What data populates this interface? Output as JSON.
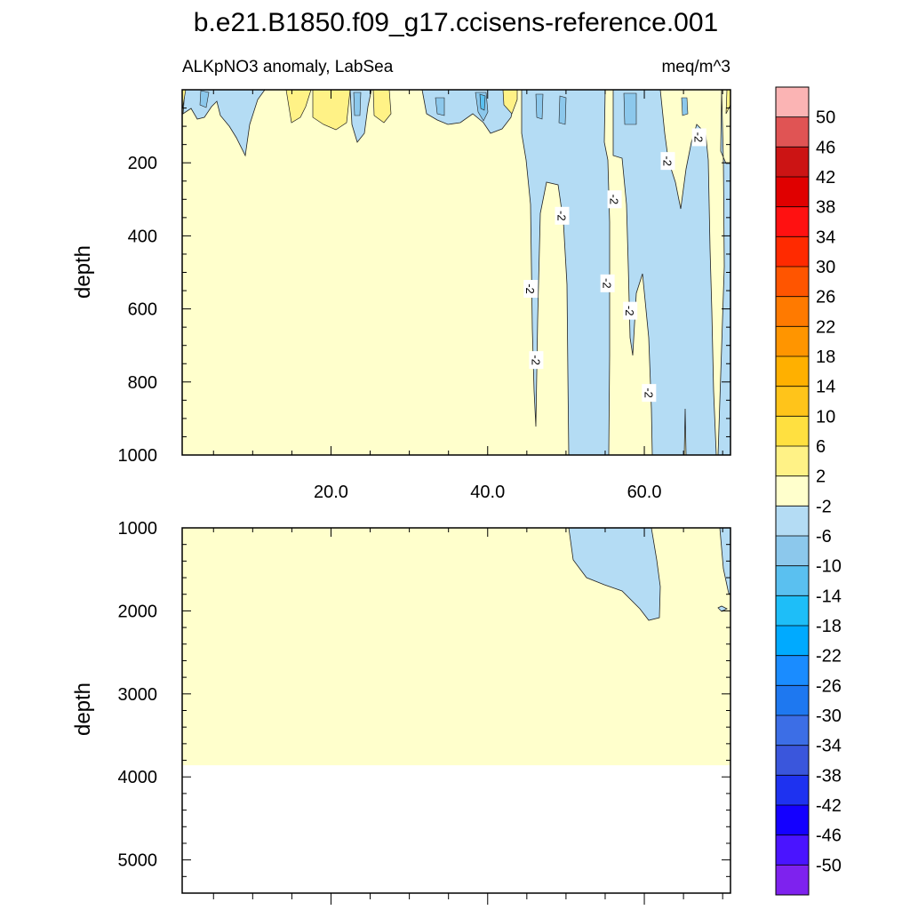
{
  "chart_data": {
    "type": "contour",
    "title": "b.e21.B1850.f09_g17.ccisens-reference.001",
    "subtitle_left": "ALKpNO3 anomaly, LabSea",
    "subtitle_right": "meq/m^3",
    "ylabel": "depth",
    "xlim": [
      1,
      71
    ],
    "upper_panel": {
      "ylim": [
        0,
        1000
      ],
      "yticks": [
        200,
        400,
        600,
        800,
        1000
      ],
      "ytick_labels": [
        "200",
        "400",
        "600",
        "800",
        "1000"
      ],
      "xticks": [
        20,
        40,
        60
      ],
      "xtick_labels": [
        "20.0",
        "40.0",
        "60.0"
      ],
      "contour_labels": [
        "-2",
        "-2",
        "-2",
        "-2",
        "-2",
        "-2",
        "-2",
        "-2",
        "-2"
      ],
      "contour_label_positions": [
        {
          "x": 45.5,
          "y": 545
        },
        {
          "x": 46.2,
          "y": 740
        },
        {
          "x": 49.5,
          "y": 345
        },
        {
          "x": 56.2,
          "y": 300
        },
        {
          "x": 55.3,
          "y": 530
        },
        {
          "x": 58.2,
          "y": 605
        },
        {
          "x": 60.6,
          "y": 830
        },
        {
          "x": 63.0,
          "y": 195
        },
        {
          "x": 67.0,
          "y": 130
        }
      ]
    },
    "lower_panel": {
      "ylim": [
        1000,
        5400
      ],
      "yticks": [
        1000,
        2000,
        3000,
        4000,
        5000
      ],
      "ytick_labels": [
        "1000",
        "2000",
        "3000",
        "4000",
        "5000"
      ],
      "ocean_floor_depth": 3860
    },
    "colorbar": {
      "levels": [
        "50",
        "46",
        "42",
        "38",
        "34",
        "30",
        "26",
        "22",
        "18",
        "14",
        "10",
        "6",
        "2",
        "-2",
        "-6",
        "-10",
        "-14",
        "-18",
        "-22",
        "-26",
        "-30",
        "-34",
        "-38",
        "-42",
        "-46",
        "-50"
      ],
      "colors": [
        "#fbb4b4",
        "#e05454",
        "#cc1414",
        "#e00000",
        "#ff1111",
        "#ff2a00",
        "#ff5500",
        "#ff7a00",
        "#ff9500",
        "#ffb000",
        "#ffc41a",
        "#ffe040",
        "#fff286",
        "#ffffcc",
        "#b4dcf4",
        "#8cc8ec",
        "#5ac0f0",
        "#1ebef8",
        "#00aaff",
        "#1a8cff",
        "#1e78f0",
        "#3c6ee6",
        "#3a56dc",
        "#1e32f0",
        "#1400ff",
        "#4a14ff",
        "#7e22ee"
      ]
    }
  }
}
